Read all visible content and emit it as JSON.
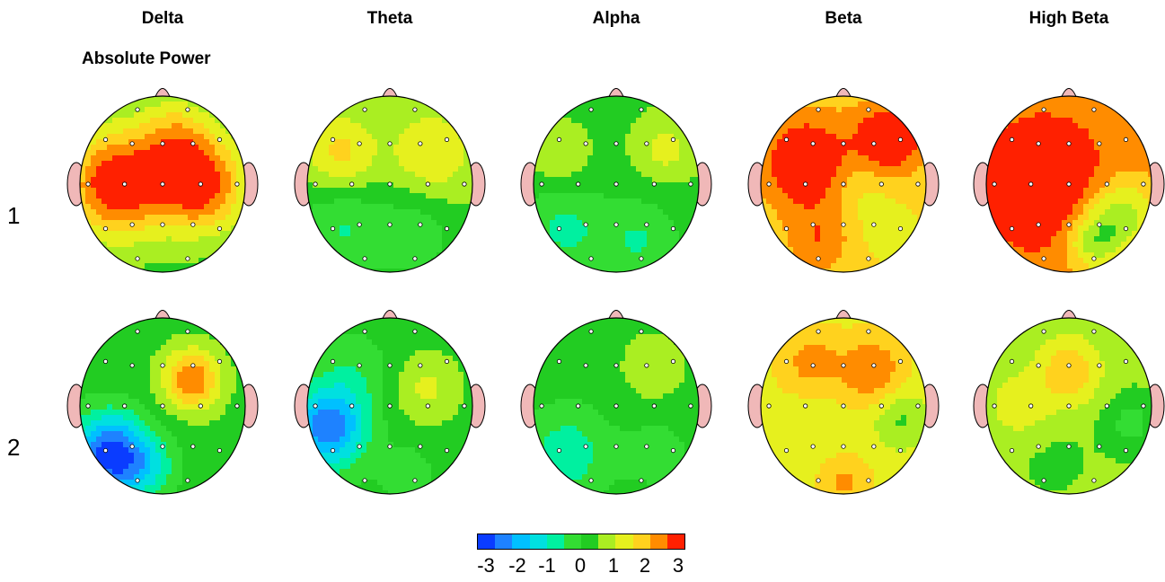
{
  "band_titles": [
    "Delta",
    "Theta",
    "Alpha",
    "Beta",
    "High Beta"
  ],
  "subtitle": "Absolute Power",
  "row_labels": [
    "1",
    "2"
  ],
  "colorbar": {
    "ticks": [
      "-3",
      "-2",
      "-1",
      "0",
      "1",
      "2",
      "3"
    ],
    "colors": [
      "#0a3cff",
      "#1e82ff",
      "#00c0ff",
      "#00e0e0",
      "#00f0a0",
      "#33dd33",
      "#22cc22",
      "#aaee22",
      "#e6f01e",
      "#ffd21e",
      "#ff8c00",
      "#ff2000"
    ]
  },
  "palette": {
    "head_outline": "#000000",
    "ear_nose": "#f0b8b8",
    "electrode": "#ffffff"
  },
  "maps": [
    {
      "row": 1,
      "band": "Delta",
      "base": 0.3,
      "blobs": [
        [
          -0.55,
          0.0,
          2.8,
          0.35
        ],
        [
          0.45,
          0.0,
          2.6,
          0.28
        ],
        [
          0.15,
          -0.55,
          1.2,
          0.2
        ]
      ]
    },
    {
      "row": 1,
      "band": "Theta",
      "base": 0.5,
      "blobs": [
        [
          -0.6,
          -0.35,
          1.2,
          0.18
        ],
        [
          0.5,
          -0.35,
          1.0,
          0.22
        ],
        [
          -0.6,
          0.5,
          -1.0,
          0.3
        ],
        [
          0.3,
          0.6,
          -0.8,
          0.25
        ]
      ]
    },
    {
      "row": 1,
      "band": "Alpha",
      "base": 0.4,
      "blobs": [
        [
          -0.65,
          0.5,
          -1.0,
          0.3
        ],
        [
          0.3,
          0.65,
          -0.9,
          0.25
        ],
        [
          0.6,
          -0.4,
          0.8,
          0.12
        ],
        [
          -0.7,
          -0.3,
          0.6,
          0.12
        ]
      ]
    },
    {
      "row": 1,
      "band": "Beta",
      "base": 1.6,
      "blobs": [
        [
          -0.45,
          -0.25,
          1.6,
          0.3
        ],
        [
          0.55,
          -0.5,
          1.6,
          0.18
        ],
        [
          0.2,
          0.0,
          -0.4,
          0.15
        ],
        [
          -0.3,
          0.65,
          0.8,
          0.15
        ],
        [
          0.5,
          0.5,
          -0.3,
          0.15
        ]
      ]
    },
    {
      "row": 1,
      "band": "High Beta",
      "base": 2.2,
      "blobs": [
        [
          -0.3,
          0.0,
          1.2,
          0.45
        ],
        [
          0.65,
          0.35,
          -1.4,
          0.18
        ],
        [
          0.3,
          0.65,
          -1.4,
          0.12
        ]
      ]
    },
    {
      "row": 2,
      "band": "Delta",
      "base": 0.3,
      "blobs": [
        [
          0.35,
          -0.3,
          2.2,
          0.12
        ],
        [
          -0.65,
          0.55,
          -3.0,
          0.22
        ],
        [
          -0.2,
          0.7,
          -1.0,
          0.15
        ]
      ]
    },
    {
      "row": 2,
      "band": "Theta",
      "base": 0.2,
      "blobs": [
        [
          -0.75,
          0.25,
          -2.6,
          0.2
        ],
        [
          -0.45,
          -0.35,
          -0.6,
          0.2
        ],
        [
          0.45,
          -0.2,
          0.9,
          0.18
        ],
        [
          0.2,
          0.75,
          -0.5,
          0.1
        ]
      ]
    },
    {
      "row": 2,
      "band": "Alpha",
      "base": 0.3,
      "blobs": [
        [
          -0.6,
          0.55,
          -1.1,
          0.3
        ],
        [
          0.5,
          0.55,
          -0.6,
          0.15
        ],
        [
          0.45,
          -0.45,
          0.7,
          0.12
        ]
      ]
    },
    {
      "row": 2,
      "band": "Beta",
      "base": 1.3,
      "blobs": [
        [
          0.35,
          -0.4,
          1.2,
          0.15
        ],
        [
          -0.4,
          -0.5,
          0.9,
          0.15
        ],
        [
          0.7,
          0.15,
          -0.9,
          0.12
        ],
        [
          0.0,
          0.85,
          0.8,
          0.1
        ],
        [
          -0.4,
          0.3,
          -0.3,
          0.15
        ]
      ]
    },
    {
      "row": 2,
      "band": "High Beta",
      "base": 0.6,
      "blobs": [
        [
          0.0,
          -0.4,
          1.3,
          0.15
        ],
        [
          -0.6,
          0.0,
          0.7,
          0.15
        ],
        [
          0.75,
          0.2,
          -0.8,
          0.1
        ],
        [
          -0.2,
          0.6,
          -0.2,
          0.2
        ]
      ]
    }
  ],
  "electrode_count": 19
}
